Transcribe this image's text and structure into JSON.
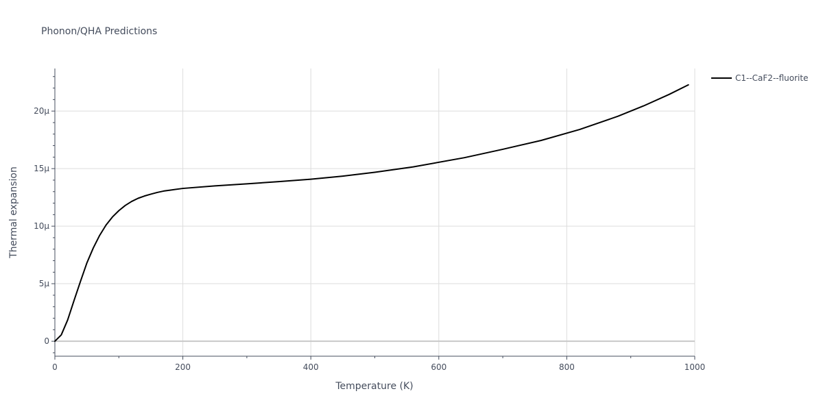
{
  "chart_data": {
    "type": "line",
    "title": "Phonon/QHA Predictions",
    "xlabel": "Temperature (K)",
    "ylabel": "Thermal expansion",
    "xlim": [
      0,
      1000
    ],
    "ylim": [
      -1.3,
      23.7
    ],
    "x_ticks": [
      {
        "value": 0,
        "label": "0"
      },
      {
        "value": 200,
        "label": "200"
      },
      {
        "value": 400,
        "label": "400"
      },
      {
        "value": 600,
        "label": "600"
      },
      {
        "value": 800,
        "label": "800"
      },
      {
        "value": 1000,
        "label": "1000"
      }
    ],
    "y_ticks": [
      {
        "value": 0,
        "label": "0"
      },
      {
        "value": 5,
        "label": "5μ"
      },
      {
        "value": 10,
        "label": "10μ"
      },
      {
        "value": 15,
        "label": "15μ"
      },
      {
        "value": 20,
        "label": "20μ"
      }
    ],
    "grid": true,
    "legend_position": "top-right",
    "series": [
      {
        "name": "C1--CaF2--fluorite",
        "color": "#000000",
        "x": [
          0,
          10,
          20,
          30,
          40,
          50,
          60,
          70,
          80,
          90,
          100,
          110,
          120,
          130,
          140,
          150,
          160,
          170,
          180,
          200,
          250,
          300,
          350,
          400,
          450,
          500,
          560,
          640,
          700,
          760,
          820,
          880,
          920,
          960,
          990
        ],
        "y": [
          0.0,
          0.55,
          1.85,
          3.55,
          5.2,
          6.8,
          8.1,
          9.2,
          10.1,
          10.8,
          11.35,
          11.8,
          12.15,
          12.42,
          12.62,
          12.78,
          12.93,
          13.05,
          13.13,
          13.28,
          13.5,
          13.68,
          13.87,
          14.08,
          14.35,
          14.68,
          15.15,
          15.95,
          16.68,
          17.45,
          18.4,
          19.55,
          20.45,
          21.45,
          22.28
        ]
      }
    ]
  }
}
